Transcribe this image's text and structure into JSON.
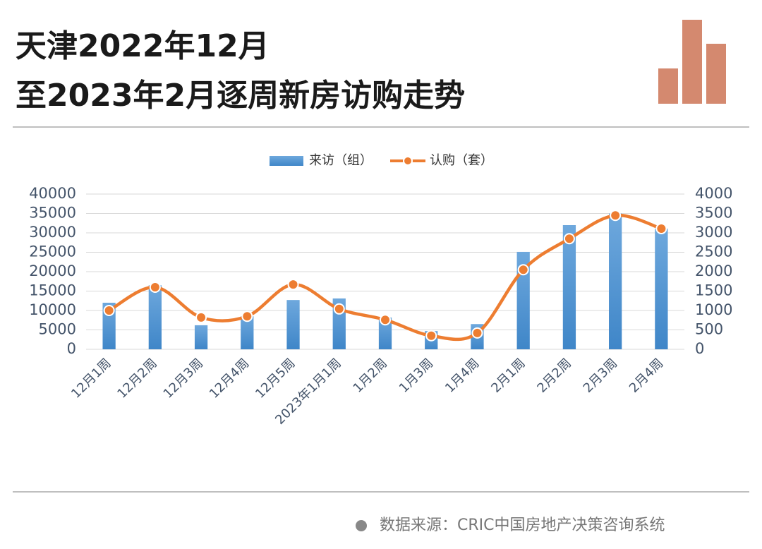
{
  "chart_data": {
    "type": "combo",
    "title": [
      "天津2022年12月",
      "至2023年2月逐周新房访购走势"
    ],
    "categories": [
      "12月1周",
      "12月2周",
      "12月3周",
      "12月4周",
      "12月5周",
      "2023年1月1周",
      "1月2周",
      "1月3周",
      "1月4周",
      "2月1周",
      "2月2周",
      "2月3周",
      "2月4周"
    ],
    "series": [
      {
        "name": "来访（组）",
        "type": "bar",
        "color": "#5b9bd5",
        "values": [
          12000,
          16500,
          6200,
          8500,
          12700,
          13100,
          8200,
          4700,
          6500,
          25100,
          32000,
          35000,
          31100
        ]
      },
      {
        "name": "认购（套）",
        "type": "line",
        "axis": "y2",
        "color": "#ed7d31",
        "values": [
          1000,
          1600,
          820,
          850,
          1670,
          1040,
          760,
          350,
          420,
          2050,
          2850,
          3450,
          3110
        ]
      }
    ],
    "ylim": [
      0,
      40000
    ],
    "yticks": [
      0,
      5000,
      10000,
      15000,
      20000,
      25000,
      30000,
      35000,
      40000
    ],
    "y2lim": [
      0,
      4000
    ],
    "y2ticks": [
      0,
      500,
      1000,
      1500,
      2000,
      2500,
      3000,
      3500,
      4000
    ],
    "grid": true,
    "legend": "top",
    "source": "数据来源：CRIC中国房地产决策咨询系统"
  }
}
